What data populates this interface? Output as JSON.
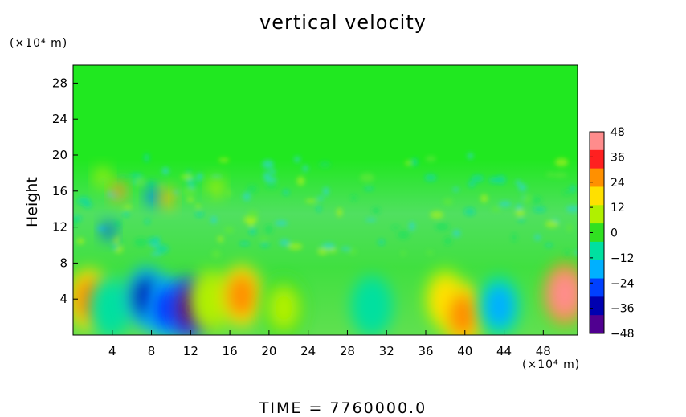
{
  "chart_data": {
    "type": "heatmap",
    "title": "vertical velocity",
    "ylabel": "Height",
    "y_unit": "(×10⁴ m)",
    "x_unit": "(×10⁴ m)",
    "footer": "TIME = 7760000.0",
    "xlim": [
      0,
      51.5
    ],
    "ylim": [
      0,
      30
    ],
    "xticks": [
      4,
      8,
      12,
      16,
      20,
      24,
      28,
      32,
      36,
      40,
      44,
      48
    ],
    "yticks": [
      4,
      8,
      12,
      16,
      20,
      24,
      28
    ],
    "colorbar": {
      "range": [
        -48,
        48
      ],
      "ticks": [
        48,
        36,
        24,
        12,
        0,
        -12,
        -24,
        -36,
        -48
      ],
      "colors": [
        "#ff8c8c",
        "#ff2020",
        "#ff9000",
        "#ffe000",
        "#b0f000",
        "#30e020",
        "#00e0a0",
        "#00b0ff",
        "#0040ff",
        "#0000b0",
        "#500090"
      ]
    },
    "features": [
      {
        "x": 1.6,
        "y": 4.0,
        "value": 32
      },
      {
        "x": 3.8,
        "y": 3.0,
        "value": -10
      },
      {
        "x": 7.5,
        "y": 4.2,
        "value": -36
      },
      {
        "x": 9.5,
        "y": 3.0,
        "value": -30
      },
      {
        "x": 11.8,
        "y": 3.0,
        "value": -44
      },
      {
        "x": 14.0,
        "y": 3.8,
        "value": 12
      },
      {
        "x": 17.2,
        "y": 4.4,
        "value": 28
      },
      {
        "x": 21.5,
        "y": 3.0,
        "value": 6
      },
      {
        "x": 30.5,
        "y": 3.2,
        "value": -12
      },
      {
        "x": 38.0,
        "y": 4.0,
        "value": 18
      },
      {
        "x": 39.8,
        "y": 2.2,
        "value": 30
      },
      {
        "x": 43.5,
        "y": 3.2,
        "value": -20
      },
      {
        "x": 50.2,
        "y": 4.6,
        "value": 44
      },
      {
        "x": 4.6,
        "y": 16.0,
        "value": 42
      },
      {
        "x": 3.6,
        "y": 11.6,
        "value": -38
      },
      {
        "x": 8.2,
        "y": 15.4,
        "value": -32
      },
      {
        "x": 9.6,
        "y": 15.2,
        "value": 30
      },
      {
        "x": 14.6,
        "y": 16.4,
        "value": 14
      },
      {
        "x": 3.0,
        "y": 17.5,
        "value": 10
      }
    ]
  }
}
